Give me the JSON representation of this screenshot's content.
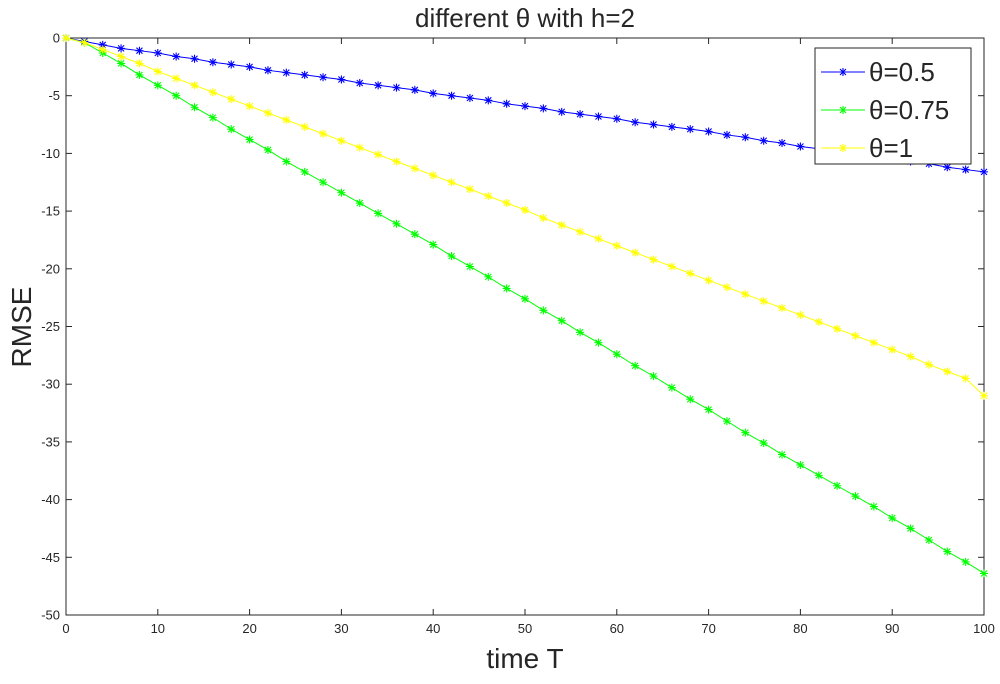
{
  "chart_data": {
    "type": "line",
    "title": "different θ with h=2",
    "xlabel": "time T",
    "ylabel": "RMSE",
    "xlim": [
      0,
      100
    ],
    "ylim": [
      -50,
      0
    ],
    "xticks": [
      0,
      10,
      20,
      30,
      40,
      50,
      60,
      70,
      80,
      90,
      100
    ],
    "yticks": [
      0,
      -5,
      -10,
      -15,
      -20,
      -25,
      -30,
      -35,
      -40,
      -45,
      -50
    ],
    "grid": false,
    "legend_position": "top-right",
    "marker": "*",
    "x": [
      0,
      2,
      4,
      6,
      8,
      10,
      12,
      14,
      16,
      18,
      20,
      22,
      24,
      26,
      28,
      30,
      32,
      34,
      36,
      38,
      40,
      42,
      44,
      46,
      48,
      50,
      52,
      54,
      56,
      58,
      60,
      62,
      64,
      66,
      68,
      70,
      72,
      74,
      76,
      78,
      80,
      82,
      84,
      86,
      88,
      90,
      92,
      94,
      96,
      98,
      100
    ],
    "series": [
      {
        "name": "θ=0.5",
        "color": "#0000ff",
        "values": [
          0,
          -0.3,
          -0.6,
          -0.9,
          -1.1,
          -1.3,
          -1.6,
          -1.8,
          -2.1,
          -2.3,
          -2.5,
          -2.8,
          -3.0,
          -3.2,
          -3.4,
          -3.6,
          -3.9,
          -4.1,
          -4.3,
          -4.5,
          -4.8,
          -5.0,
          -5.2,
          -5.4,
          -5.7,
          -5.9,
          -6.1,
          -6.4,
          -6.6,
          -6.8,
          -7.0,
          -7.3,
          -7.5,
          -7.7,
          -7.9,
          -8.1,
          -8.4,
          -8.6,
          -8.9,
          -9.1,
          -9.4,
          -9.6,
          -9.8,
          -10.0,
          -10.3,
          -10.5,
          -10.7,
          -10.9,
          -11.2,
          -11.4,
          -11.6
        ]
      },
      {
        "name": "θ=0.75",
        "color": "#00ff00",
        "values": [
          0,
          -0.4,
          -1.3,
          -2.2,
          -3.2,
          -4.1,
          -5.0,
          -6.0,
          -6.9,
          -7.9,
          -8.8,
          -9.7,
          -10.7,
          -11.6,
          -12.5,
          -13.4,
          -14.3,
          -15.2,
          -16.1,
          -17.0,
          -17.9,
          -18.9,
          -19.8,
          -20.7,
          -21.7,
          -22.6,
          -23.6,
          -24.5,
          -25.5,
          -26.4,
          -27.4,
          -28.4,
          -29.3,
          -30.3,
          -31.3,
          -32.2,
          -33.2,
          -34.2,
          -35.1,
          -36.1,
          -37.0,
          -37.9,
          -38.8,
          -39.7,
          -40.6,
          -41.6,
          -42.5,
          -43.5,
          -44.5,
          -45.4,
          -46.4
        ]
      },
      {
        "name": "θ=1",
        "color": "#ffff00",
        "values": [
          0,
          -0.4,
          -1.0,
          -1.6,
          -2.2,
          -2.9,
          -3.5,
          -4.1,
          -4.7,
          -5.3,
          -5.9,
          -6.5,
          -7.1,
          -7.7,
          -8.3,
          -8.9,
          -9.5,
          -10.1,
          -10.7,
          -11.3,
          -11.9,
          -12.5,
          -13.1,
          -13.7,
          -14.3,
          -14.9,
          -15.6,
          -16.2,
          -16.8,
          -17.4,
          -18.0,
          -18.6,
          -19.2,
          -19.8,
          -20.4,
          -21.0,
          -21.6,
          -22.2,
          -22.8,
          -23.4,
          -24.0,
          -24.6,
          -25.2,
          -25.8,
          -26.4,
          -27.0,
          -27.6,
          -28.3,
          -28.9,
          -29.5,
          -31.0
        ]
      }
    ]
  }
}
